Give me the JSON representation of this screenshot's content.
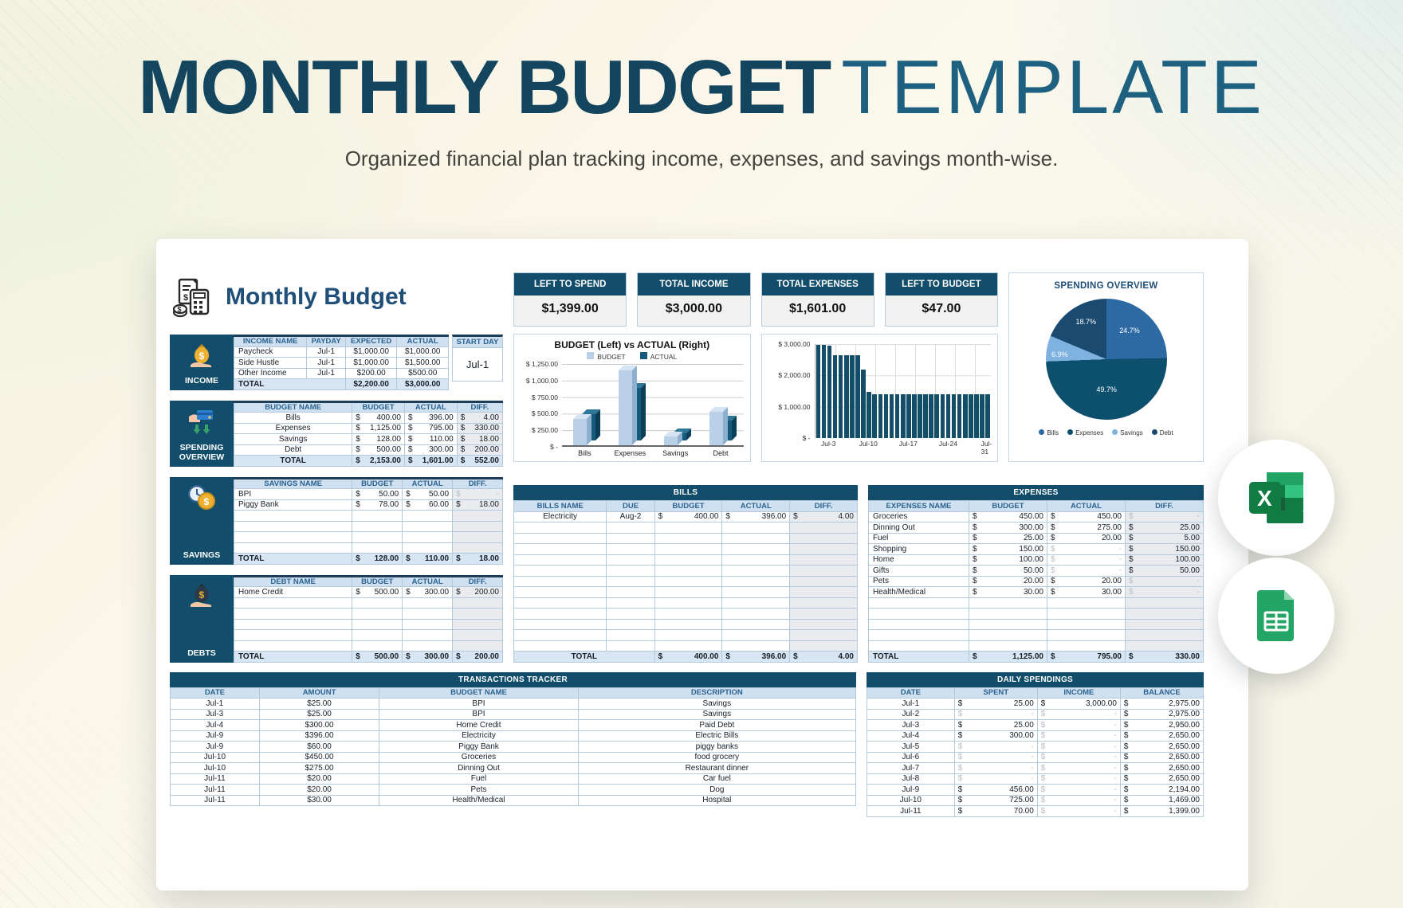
{
  "page": {
    "title_primary": "MONTHLY BUDGET",
    "title_secondary": "TEMPLATE",
    "subtitle": "Organized financial plan tracking income, expenses, and savings month-wise.",
    "sheet_title": "Monthly Budget"
  },
  "colors": {
    "header_teal": "#124e6b",
    "accent_navy": "#1f4e79",
    "header_fill": "#cfe1f1",
    "total_fill": "#d8e6f3"
  },
  "cards": [
    {
      "label": "LEFT TO SPEND",
      "value": "$1,399.00"
    },
    {
      "label": "TOTAL INCOME",
      "value": "$3,000.00"
    },
    {
      "label": "TOTAL EXPENSES",
      "value": "$1,601.00"
    },
    {
      "label": "LEFT TO BUDGET",
      "value": "$47.00"
    }
  ],
  "tables": {
    "income": {
      "section_label": "INCOME",
      "columns": [
        "INCOME NAME",
        "PAYDAY",
        "EXPECTED",
        "ACTUAL"
      ],
      "rows": [
        [
          "Paycheck",
          "Jul-1",
          "$1,000.00",
          "$1,000.00"
        ],
        [
          "Side Hustle",
          "Jul-1",
          "$1,000.00",
          "$1,500.00"
        ],
        [
          "Other Income",
          "Jul-1",
          "$200.00",
          "$500.00"
        ]
      ],
      "total": [
        {
          "t": "TOTAL",
          "span": 2
        },
        "$2,200.00",
        "$3,000.00"
      ],
      "start_day_label": "START DAY",
      "start_day": "Jul-1"
    },
    "spending": {
      "section_label": "SPENDING OVERVIEW",
      "columns": [
        "BUDGET NAME",
        "BUDGET",
        "ACTUAL",
        "DIFF."
      ],
      "rows": [
        [
          "Bills",
          {
            "c": "400.00"
          },
          {
            "c": "396.00"
          },
          {
            "c": "4.00"
          }
        ],
        [
          "Expenses",
          {
            "c": "1,125.00"
          },
          {
            "c": "795.00"
          },
          {
            "c": "330.00"
          }
        ],
        [
          "Savings",
          {
            "c": "128.00"
          },
          {
            "c": "110.00"
          },
          {
            "c": "18.00"
          }
        ],
        [
          "Debt",
          {
            "c": "500.00"
          },
          {
            "c": "300.00"
          },
          {
            "c": "200.00"
          }
        ]
      ],
      "total": [
        {
          "t": "TOTAL"
        },
        {
          "c": "2,153.00"
        },
        {
          "c": "1,601.00"
        },
        {
          "c": "552.00"
        }
      ]
    },
    "savings": {
      "section_label": "SAVINGS",
      "columns": [
        "SAVINGS NAME",
        "BUDGET",
        "ACTUAL",
        "DIFF."
      ],
      "rows": [
        [
          "BPI",
          {
            "c": "50.00"
          },
          {
            "c": "50.00"
          },
          {
            "c": "-",
            "m": true
          }
        ],
        [
          "Piggy Bank",
          {
            "c": "78.00"
          },
          {
            "c": "60.00"
          },
          {
            "c": "18.00"
          }
        ]
      ],
      "empty_rows": 4,
      "total": [
        {
          "t": "TOTAL"
        },
        {
          "c": "128.00"
        },
        {
          "c": "110.00"
        },
        {
          "c": "18.00"
        }
      ]
    },
    "debts": {
      "section_label": "DEBTS",
      "columns": [
        "DEBT NAME",
        "BUDGET",
        "ACTUAL",
        "DIFF."
      ],
      "rows": [
        [
          "Home Credit",
          {
            "c": "500.00"
          },
          {
            "c": "300.00"
          },
          {
            "c": "200.00"
          }
        ]
      ],
      "empty_rows": 5,
      "total": [
        {
          "t": "TOTAL"
        },
        {
          "c": "500.00"
        },
        {
          "c": "300.00"
        },
        {
          "c": "200.00"
        }
      ]
    },
    "bills": {
      "banner": "BILLS",
      "columns": [
        "BILLS NAME",
        "DUE",
        "BUDGET",
        "ACTUAL",
        "DIFF."
      ],
      "rows": [
        [
          "Electricity",
          "Aug-2",
          {
            "c": "400.00"
          },
          {
            "c": "396.00"
          },
          {
            "c": "4.00"
          }
        ]
      ],
      "empty_rows": 12,
      "total": [
        {
          "t": "TOTAL",
          "span": 2
        },
        {
          "c": "400.00"
        },
        {
          "c": "396.00"
        },
        {
          "c": "4.00"
        }
      ]
    },
    "expenses": {
      "banner": "EXPENSES",
      "columns": [
        "EXPENSES NAME",
        "BUDGET",
        "ACTUAL",
        "DIFF."
      ],
      "rows": [
        [
          "Groceries",
          {
            "c": "450.00"
          },
          {
            "c": "450.00"
          },
          {
            "c": "-",
            "m": true
          }
        ],
        [
          "Dinning Out",
          {
            "c": "300.00"
          },
          {
            "c": "275.00"
          },
          {
            "c": "25.00"
          }
        ],
        [
          "Fuel",
          {
            "c": "25.00"
          },
          {
            "c": "20.00"
          },
          {
            "c": "5.00"
          }
        ],
        [
          "Shopping",
          {
            "c": "150.00"
          },
          {
            "c": "-",
            "m": true
          },
          {
            "c": "150.00"
          }
        ],
        [
          "Home",
          {
            "c": "100.00"
          },
          {
            "c": "-",
            "m": true
          },
          {
            "c": "100.00"
          }
        ],
        [
          "Gifts",
          {
            "c": "50.00"
          },
          {
            "c": "-",
            "m": true
          },
          {
            "c": "50.00"
          }
        ],
        [
          "Pets",
          {
            "c": "20.00"
          },
          {
            "c": "20.00"
          },
          {
            "c": "-",
            "m": true
          }
        ],
        [
          "Health/Medical",
          {
            "c": "30.00"
          },
          {
            "c": "30.00"
          },
          {
            "c": "-",
            "m": true
          }
        ]
      ],
      "empty_rows": 5,
      "total": [
        {
          "t": "TOTAL"
        },
        {
          "c": "1,125.00"
        },
        {
          "c": "795.00"
        },
        {
          "c": "330.00"
        }
      ]
    },
    "transactions": {
      "banner": "TRANSACTIONS TRACKER",
      "columns": [
        "DATE",
        "AMOUNT",
        "BUDGET NAME",
        "DESCRIPTION"
      ],
      "rows": [
        [
          "Jul-1",
          "$25.00",
          "BPI",
          "Savings"
        ],
        [
          "Jul-3",
          "$25.00",
          "BPI",
          "Savings"
        ],
        [
          "Jul-4",
          "$300.00",
          "Home Credit",
          "Paid Debt"
        ],
        [
          "Jul-9",
          "$396.00",
          "Electricity",
          "Electric Bills"
        ],
        [
          "Jul-9",
          "$60.00",
          "Piggy Bank",
          "piggy banks"
        ],
        [
          "Jul-10",
          "$450.00",
          "Groceries",
          "food grocery"
        ],
        [
          "Jul-10",
          "$275.00",
          "Dinning Out",
          "Restaurant dinner"
        ],
        [
          "Jul-11",
          "$20.00",
          "Fuel",
          "Car fuel"
        ],
        [
          "Jul-11",
          "$20.00",
          "Pets",
          "Dog"
        ],
        [
          "Jul-11",
          "$30.00",
          "Health/Medical",
          "Hospital"
        ]
      ]
    },
    "daily": {
      "banner": "DAILY SPENDINGS",
      "columns": [
        "DATE",
        "SPENT",
        "INCOME",
        "BALANCE"
      ],
      "rows": [
        [
          "Jul-1",
          {
            "c": "25.00"
          },
          {
            "c": "3,000.00"
          },
          {
            "c": "2,975.00"
          }
        ],
        [
          "Jul-2",
          {
            "c": "-",
            "m": true
          },
          {
            "c": "-",
            "m": true
          },
          {
            "c": "2,975.00"
          }
        ],
        [
          "Jul-3",
          {
            "c": "25.00"
          },
          {
            "c": "-",
            "m": true
          },
          {
            "c": "2,950.00"
          }
        ],
        [
          "Jul-4",
          {
            "c": "300.00"
          },
          {
            "c": "-",
            "m": true
          },
          {
            "c": "2,650.00"
          }
        ],
        [
          "Jul-5",
          {
            "c": "-",
            "m": true
          },
          {
            "c": "-",
            "m": true
          },
          {
            "c": "2,650.00"
          }
        ],
        [
          "Jul-6",
          {
            "c": "-",
            "m": true
          },
          {
            "c": "-",
            "m": true
          },
          {
            "c": "2,650.00"
          }
        ],
        [
          "Jul-7",
          {
            "c": "-",
            "m": true
          },
          {
            "c": "-",
            "m": true
          },
          {
            "c": "2,650.00"
          }
        ],
        [
          "Jul-8",
          {
            "c": "-",
            "m": true
          },
          {
            "c": "-",
            "m": true
          },
          {
            "c": "2,650.00"
          }
        ],
        [
          "Jul-9",
          {
            "c": "456.00"
          },
          {
            "c": "-",
            "m": true
          },
          {
            "c": "2,194.00"
          }
        ],
        [
          "Jul-10",
          {
            "c": "725.00"
          },
          {
            "c": "-",
            "m": true
          },
          {
            "c": "1,469.00"
          }
        ],
        [
          "Jul-11",
          {
            "c": "70.00"
          },
          {
            "c": "-",
            "m": true
          },
          {
            "c": "1,399.00"
          }
        ]
      ]
    }
  },
  "chart_data": [
    {
      "type": "bar",
      "title": "BUDGET (Left) vs ACTUAL (Right)",
      "categories": [
        "Bills",
        "Expenses",
        "Savings",
        "Debt"
      ],
      "series": [
        {
          "name": "BUDGET",
          "values": [
            400,
            1125,
            128,
            500
          ],
          "color": "#b9d0e8"
        },
        {
          "name": "ACTUAL",
          "values": [
            396,
            795,
            110,
            300
          ],
          "color": "#135a7d"
        }
      ],
      "ylim": [
        0,
        1250
      ],
      "yticks": [
        "$ 1,250.00",
        "$ 1,000.00",
        "$ 750.00",
        "$ 500.00",
        "$ 250.00",
        "$ -"
      ],
      "legend_position": "top",
      "grid": true
    },
    {
      "type": "bar",
      "title": "",
      "x": "Days Jul-1 through Jul-31 (daily balance)",
      "values": [
        2975,
        2975,
        2950,
        2650,
        2650,
        2650,
        2650,
        2650,
        2194,
        1469,
        1399,
        1399,
        1399,
        1399,
        1399,
        1399,
        1399,
        1399,
        1399,
        1399,
        1399,
        1399,
        1399,
        1399,
        1399,
        1399,
        1399,
        1399,
        1399,
        1399,
        1399
      ],
      "ylim": [
        0,
        3000
      ],
      "yticks": [
        "$ 3,000.00",
        "$ 2,000.00",
        "$ 1,000.00",
        "$ -"
      ],
      "xticks": [
        "Jul-3",
        "Jul-10",
        "Jul-17",
        "Jul-24",
        "Jul-31"
      ],
      "bar_color": "#134d68",
      "grid": true
    },
    {
      "type": "pie",
      "title": "SPENDING OVERVIEW",
      "labels": [
        "Bills",
        "Expenses",
        "Savings",
        "Debt"
      ],
      "values": [
        24.7,
        49.7,
        6.9,
        18.7
      ],
      "percent_labels": [
        "24.7%",
        "49.7%",
        "6.9%",
        "18.7%"
      ],
      "colors": [
        "#2d6aa3",
        "#0d506d",
        "#7fb2e0",
        "#1b4a70"
      ],
      "legend_position": "bottom"
    }
  ]
}
